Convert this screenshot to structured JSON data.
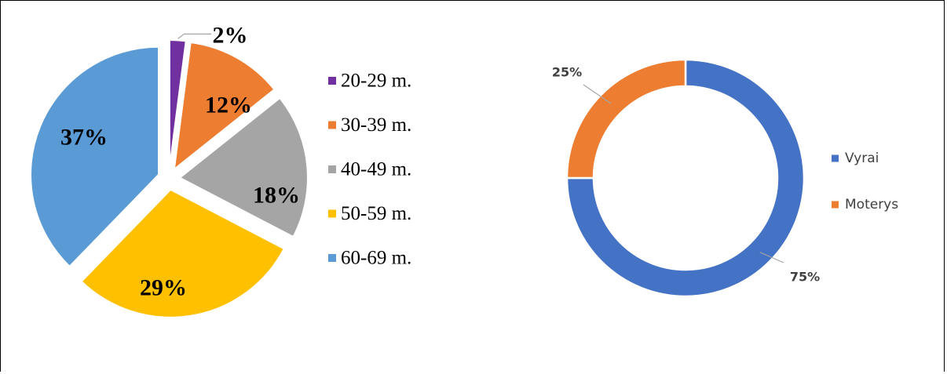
{
  "chart_data": [
    {
      "type": "pie",
      "exploded": true,
      "legend_position": "right",
      "categories": [
        "20-29 m.",
        "30-39 m.",
        "40-49 m.",
        "50-59 m.",
        "60-69 m."
      ],
      "values": [
        2,
        12,
        18,
        29,
        37
      ],
      "data_labels": [
        "2%",
        "12%",
        "18%",
        "29%",
        "37%"
      ],
      "colors": [
        "#7030A0",
        "#ED7D31",
        "#A5A5A5",
        "#FFC000",
        "#5B9BD5"
      ]
    },
    {
      "type": "pie",
      "style": "donut",
      "legend_position": "right",
      "categories": [
        "Vyrai",
        "Moterys"
      ],
      "values": [
        75,
        25
      ],
      "data_labels": [
        "75%",
        "25%"
      ],
      "colors": [
        "#4472C4",
        "#ED7D31"
      ]
    }
  ]
}
